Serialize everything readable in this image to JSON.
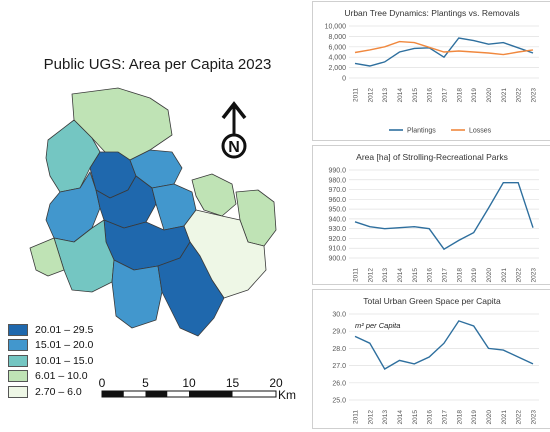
{
  "map": {
    "title": "Public UGS: Area per Capita 2023",
    "north_letter": "N",
    "legend": [
      {
        "label": "20.01 – 29.5",
        "color": "#1f68ad"
      },
      {
        "label": "15.01 – 20.0",
        "color": "#4297cd"
      },
      {
        "label": "10.01 – 15.0",
        "color": "#74c6c2"
      },
      {
        "label": "6.01 – 10.0",
        "color": "#bfe3b5"
      },
      {
        "label": "2.70 – 6.0",
        "color": "#eef7e6"
      }
    ],
    "scale": {
      "ticks": [
        "0",
        "5",
        "10",
        "15",
        "20"
      ],
      "unit": "Km"
    }
  },
  "chart_data": [
    {
      "type": "line",
      "title": "Urban Tree Dynamics: Plantings vs. Removals",
      "x": [
        "2011",
        "2012",
        "2013",
        "2014",
        "2015",
        "2016",
        "2017",
        "2018",
        "2019",
        "2020",
        "2021",
        "2022",
        "2023"
      ],
      "ylim": [
        0,
        10000
      ],
      "yticks": [
        "0",
        "2,000",
        "4,000",
        "6,000",
        "8,000",
        "10,000"
      ],
      "grid": true,
      "legend": "bottom",
      "series": [
        {
          "name": "Plantings",
          "color": "#2e6f9e",
          "values": [
            2800,
            2300,
            3100,
            5000,
            5700,
            5800,
            4000,
            7700,
            7200,
            6500,
            6800,
            5800,
            4800
          ]
        },
        {
          "name": "Losses",
          "color": "#f0883e",
          "values": [
            4900,
            5400,
            6000,
            7000,
            6800,
            5900,
            5000,
            5200,
            5000,
            4800,
            4500,
            5000,
            5400
          ]
        }
      ]
    },
    {
      "type": "line",
      "title": "Area [ha] of Strolling-Recreational Parks",
      "x": [
        "2011",
        "2012",
        "2013",
        "2014",
        "2015",
        "2016",
        "2017",
        "2018",
        "2019",
        "2020",
        "2021",
        "2022",
        "2023"
      ],
      "ylim": [
        900,
        990
      ],
      "yticks": [
        "900.0",
        "910.0",
        "920.0",
        "930.0",
        "940.0",
        "950.0",
        "960.0",
        "970.0",
        "980.0",
        "990.0"
      ],
      "grid": true,
      "series": [
        {
          "color": "#2e6f9e",
          "values": [
            937,
            932,
            930,
            931,
            932,
            930,
            909,
            918,
            926,
            951,
            977,
            977,
            931
          ]
        }
      ]
    },
    {
      "type": "line",
      "title": "Total Urban Green Space per Capita",
      "annotation": "m² per Capita",
      "x": [
        "2011",
        "2012",
        "2013",
        "2014",
        "2015",
        "2016",
        "2017",
        "2018",
        "2019",
        "2020",
        "2021",
        "2022",
        "2023"
      ],
      "ylim": [
        25.0,
        30.0
      ],
      "yticks": [
        "25.0",
        "26.0",
        "27.0",
        "28.0",
        "29.0",
        "30.0"
      ],
      "grid": true,
      "series": [
        {
          "color": "#2e6f9e",
          "values": [
            28.7,
            28.3,
            26.8,
            27.3,
            27.1,
            27.5,
            28.3,
            29.6,
            29.3,
            28.0,
            27.9,
            27.5,
            27.1
          ]
        }
      ]
    }
  ]
}
